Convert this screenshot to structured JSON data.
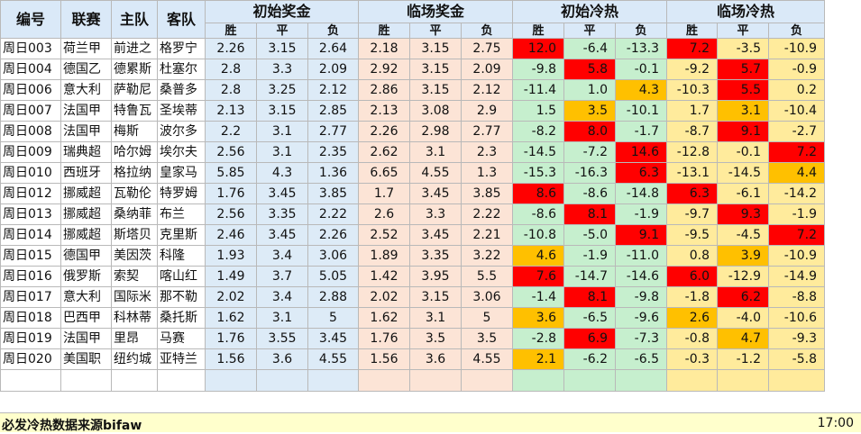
{
  "headers": {
    "id": "编号",
    "league": "联赛",
    "home": "主队",
    "away": "客队",
    "initial_bonus": "初始奖金",
    "live_bonus": "临场奖金",
    "initial_cold": "初始冷热",
    "live_cold": "临场冷热",
    "sub": [
      "胜",
      "平",
      "负"
    ]
  },
  "rows": [
    {
      "id": "周日003",
      "league": "荷兰甲",
      "home": "前进之",
      "away": "格罗宁",
      "ib": [
        "2.26",
        "3.15",
        "2.64"
      ],
      "lb": [
        "2.18",
        "3.15",
        "2.75"
      ],
      "ic": [
        "12.0",
        "-6.4",
        "-13.3"
      ],
      "lc": [
        "7.2",
        "-3.5",
        "-10.9"
      ],
      "ich": [
        "red",
        "",
        ""
      ],
      "lch": [
        "red",
        "",
        ""
      ]
    },
    {
      "id": "周日004",
      "league": "德国乙",
      "home": "德累斯",
      "away": "杜塞尔",
      "ib": [
        "2.8",
        "3.3",
        "2.09"
      ],
      "lb": [
        "2.92",
        "3.15",
        "2.09"
      ],
      "ic": [
        "-9.8",
        "5.8",
        "-0.1"
      ],
      "lc": [
        "-9.2",
        "5.7",
        "-0.9"
      ],
      "ich": [
        "",
        "red",
        ""
      ],
      "lch": [
        "",
        "red",
        ""
      ]
    },
    {
      "id": "周日006",
      "league": "意大利",
      "home": "萨勒尼",
      "away": "桑普多",
      "ib": [
        "2.8",
        "3.25",
        "2.12"
      ],
      "lb": [
        "2.86",
        "3.15",
        "2.12"
      ],
      "ic": [
        "-11.4",
        "1.0",
        "4.3"
      ],
      "lc": [
        "-10.3",
        "5.5",
        "0.2"
      ],
      "ich": [
        "",
        "",
        "orange"
      ],
      "lch": [
        "",
        "red",
        ""
      ]
    },
    {
      "id": "周日007",
      "league": "法国甲",
      "home": "特鲁瓦",
      "away": "圣埃蒂",
      "ib": [
        "2.13",
        "3.15",
        "2.85"
      ],
      "lb": [
        "2.13",
        "3.08",
        "2.9"
      ],
      "ic": [
        "1.5",
        "3.5",
        "-10.1"
      ],
      "lc": [
        "1.7",
        "3.1",
        "-10.4"
      ],
      "ich": [
        "",
        "orange",
        ""
      ],
      "lch": [
        "",
        "orange",
        ""
      ]
    },
    {
      "id": "周日008",
      "league": "法国甲",
      "home": "梅斯",
      "away": "波尔多",
      "ib": [
        "2.2",
        "3.1",
        "2.77"
      ],
      "lb": [
        "2.26",
        "2.98",
        "2.77"
      ],
      "ic": [
        "-8.2",
        "8.0",
        "-1.7"
      ],
      "lc": [
        "-8.7",
        "9.1",
        "-2.7"
      ],
      "ich": [
        "",
        "red",
        ""
      ],
      "lch": [
        "",
        "red",
        ""
      ]
    },
    {
      "id": "周日009",
      "league": "瑞典超",
      "home": "哈尔姆",
      "away": "埃尔夫",
      "ib": [
        "2.56",
        "3.1",
        "2.35"
      ],
      "lb": [
        "2.62",
        "3.1",
        "2.3"
      ],
      "ic": [
        "-14.5",
        "-7.2",
        "14.6"
      ],
      "lc": [
        "-12.8",
        "-0.1",
        "7.2"
      ],
      "ich": [
        "",
        "",
        "red"
      ],
      "lch": [
        "",
        "",
        "red"
      ]
    },
    {
      "id": "周日010",
      "league": "西班牙",
      "home": "格拉纳",
      "away": "皇家马",
      "ib": [
        "5.85",
        "4.3",
        "1.36"
      ],
      "lb": [
        "6.65",
        "4.55",
        "1.3"
      ],
      "ic": [
        "-15.3",
        "-16.3",
        "6.3"
      ],
      "lc": [
        "-13.1",
        "-14.5",
        "4.4"
      ],
      "ich": [
        "",
        "",
        "red"
      ],
      "lch": [
        "",
        "",
        "orange"
      ]
    },
    {
      "id": "周日012",
      "league": "挪威超",
      "home": "瓦勒伦",
      "away": "特罗姆",
      "ib": [
        "1.76",
        "3.45",
        "3.85"
      ],
      "lb": [
        "1.7",
        "3.45",
        "3.85"
      ],
      "ic": [
        "8.6",
        "-8.6",
        "-14.8"
      ],
      "lc": [
        "6.3",
        "-6.1",
        "-14.2"
      ],
      "ich": [
        "red",
        "",
        ""
      ],
      "lch": [
        "red",
        "",
        ""
      ]
    },
    {
      "id": "周日013",
      "league": "挪威超",
      "home": "桑纳菲",
      "away": "布兰",
      "ib": [
        "2.56",
        "3.35",
        "2.22"
      ],
      "lb": [
        "2.6",
        "3.3",
        "2.22"
      ],
      "ic": [
        "-8.6",
        "8.1",
        "-1.9"
      ],
      "lc": [
        "-9.7",
        "9.3",
        "-1.9"
      ],
      "ich": [
        "",
        "red",
        ""
      ],
      "lch": [
        "",
        "red",
        ""
      ]
    },
    {
      "id": "周日014",
      "league": "挪威超",
      "home": "斯塔贝",
      "away": "克里斯",
      "ib": [
        "2.46",
        "3.45",
        "2.26"
      ],
      "lb": [
        "2.52",
        "3.45",
        "2.21"
      ],
      "ic": [
        "-10.8",
        "-5.0",
        "9.1"
      ],
      "lc": [
        "-9.5",
        "-4.5",
        "7.2"
      ],
      "ich": [
        "",
        "",
        "red"
      ],
      "lch": [
        "",
        "",
        "red"
      ]
    },
    {
      "id": "周日015",
      "league": "德国甲",
      "home": "美因茨",
      "away": "科隆",
      "ib": [
        "1.93",
        "3.4",
        "3.06"
      ],
      "lb": [
        "1.89",
        "3.35",
        "3.22"
      ],
      "ic": [
        "4.6",
        "-1.9",
        "-11.0"
      ],
      "lc": [
        "0.8",
        "3.9",
        "-10.9"
      ],
      "ich": [
        "orange",
        "",
        ""
      ],
      "lch": [
        "",
        "orange",
        ""
      ]
    },
    {
      "id": "周日016",
      "league": "俄罗斯",
      "home": "索契",
      "away": "喀山红",
      "ib": [
        "1.49",
        "3.7",
        "5.05"
      ],
      "lb": [
        "1.42",
        "3.95",
        "5.5"
      ],
      "ic": [
        "7.6",
        "-14.7",
        "-14.6"
      ],
      "lc": [
        "6.0",
        "-12.9",
        "-14.9"
      ],
      "ich": [
        "red",
        "",
        ""
      ],
      "lch": [
        "red",
        "",
        ""
      ]
    },
    {
      "id": "周日017",
      "league": "意大利",
      "home": "国际米",
      "away": "那不勒",
      "ib": [
        "2.02",
        "3.4",
        "2.88"
      ],
      "lb": [
        "2.02",
        "3.15",
        "3.06"
      ],
      "ic": [
        "-1.4",
        "8.1",
        "-9.8"
      ],
      "lc": [
        "-1.8",
        "6.2",
        "-8.8"
      ],
      "ich": [
        "",
        "red",
        ""
      ],
      "lch": [
        "",
        "red",
        ""
      ]
    },
    {
      "id": "周日018",
      "league": "巴西甲",
      "home": "科林蒂",
      "away": "桑托斯",
      "ib": [
        "1.62",
        "3.1",
        "5"
      ],
      "lb": [
        "1.62",
        "3.1",
        "5"
      ],
      "ic": [
        "3.6",
        "-6.5",
        "-9.6"
      ],
      "lc": [
        "2.6",
        "-4.0",
        "-10.6"
      ],
      "ich": [
        "orange",
        "",
        ""
      ],
      "lch": [
        "orange",
        "",
        ""
      ]
    },
    {
      "id": "周日019",
      "league": "法国甲",
      "home": "里昂",
      "away": "马赛",
      "ib": [
        "1.76",
        "3.55",
        "3.45"
      ],
      "lb": [
        "1.76",
        "3.5",
        "3.5"
      ],
      "ic": [
        "-2.8",
        "6.9",
        "-7.3"
      ],
      "lc": [
        "-0.8",
        "4.7",
        "-9.3"
      ],
      "ich": [
        "",
        "red",
        ""
      ],
      "lch": [
        "",
        "orange",
        ""
      ]
    },
    {
      "id": "周日020",
      "league": "美国职",
      "home": "纽约城",
      "away": "亚特兰",
      "ib": [
        "1.56",
        "3.6",
        "4.55"
      ],
      "lb": [
        "1.56",
        "3.6",
        "4.55"
      ],
      "ic": [
        "2.1",
        "-6.2",
        "-6.5"
      ],
      "lc": [
        "-0.3",
        "-1.2",
        "-5.8"
      ],
      "ich": [
        "orange",
        "",
        ""
      ],
      "lch": [
        "",
        "",
        ""
      ]
    }
  ],
  "footer": {
    "source": "必发冷热数据来源bifaw",
    "time": "17:00"
  },
  "colors": {
    "hot_red": "#ff0000",
    "warm_orange": "#ffc000",
    "initial_bonus_bg": "#ddebf7",
    "live_bonus_bg": "#fce4d6",
    "initial_cold_bg": "#c6efce",
    "live_cold_bg": "#ffeb9c"
  }
}
